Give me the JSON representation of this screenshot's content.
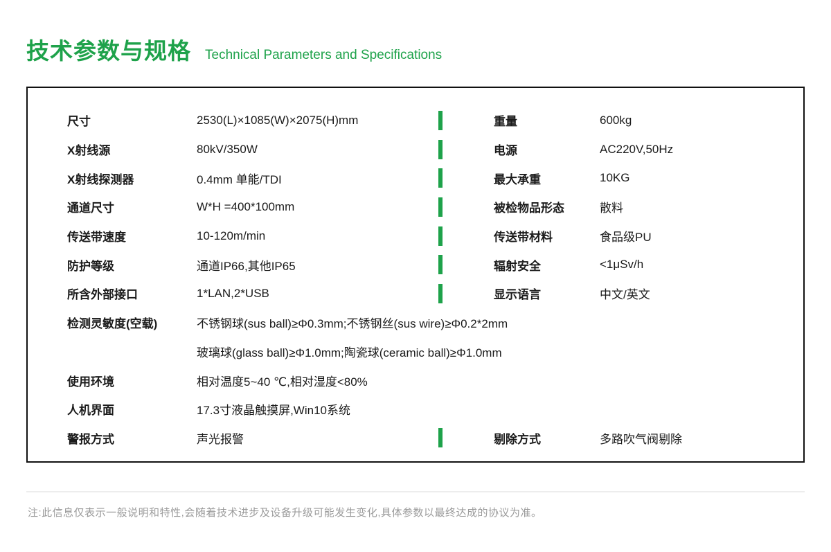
{
  "page": {
    "title_zh": "技术参数与规格",
    "title_en": "Technical Parameters and Specifications",
    "note": "注:此信息仅表示一般说明和特性,会随着技术进步及设备升级可能发生变化,具体参数以最终达成的协议为准。",
    "colors": {
      "accent": "#1EA24A",
      "box_border": "#111111",
      "note_text": "#9B9B9B",
      "divider_line": "#EDEDED"
    }
  },
  "specs": {
    "rows": [
      {
        "left_label": "尺寸",
        "left_value": "2530(L)×1085(W)×2075(H)mm",
        "divider": true,
        "right_label": "重量",
        "right_value": "600kg"
      },
      {
        "left_label": "X射线源",
        "left_value": "80kV/350W",
        "divider": true,
        "right_label": "电源",
        "right_value": "AC220V,50Hz"
      },
      {
        "left_label": "X射线探测器",
        "left_value": "0.4mm 单能/TDI",
        "divider": true,
        "right_label": "最大承重",
        "right_value": "10KG"
      },
      {
        "left_label": "通道尺寸",
        "left_value": "W*H =400*100mm",
        "divider": true,
        "right_label": "被检物品形态",
        "right_value": "散料"
      },
      {
        "left_label": "传送带速度",
        "left_value": "10-120m/min",
        "divider": true,
        "right_label": "传送带材料",
        "right_value": "食品级PU"
      },
      {
        "left_label": "防护等级",
        "left_value": "通道IP66,其他IP65",
        "divider": true,
        "right_label": "辐射安全",
        "right_value": "<1μSv/h"
      },
      {
        "left_label": "所含外部接口",
        "left_value": "1*LAN,2*USB",
        "divider": true,
        "right_label": "显示语言",
        "right_value": "中文/英文"
      },
      {
        "left_label": "检测灵敏度(空载)",
        "left_value": "不锈钢球(sus ball)≥Φ0.3mm;不锈钢丝(sus wire)≥Φ0.2*2mm",
        "divider": false
      },
      {
        "left_label": "",
        "left_value": "玻璃球(glass ball)≥Φ1.0mm;陶瓷球(ceramic ball)≥Φ1.0mm",
        "divider": false
      },
      {
        "left_label": "使用环境",
        "left_value": "相对温度5~40 ℃,相对湿度<80%",
        "divider": false
      },
      {
        "left_label": "人机界面",
        "left_value": "17.3寸液晶触摸屏,Win10系统",
        "divider": false
      },
      {
        "left_label": "警报方式",
        "left_value": "声光报警",
        "divider": true,
        "right_label": "剔除方式",
        "right_value": "多路吹气阀剔除"
      }
    ]
  }
}
